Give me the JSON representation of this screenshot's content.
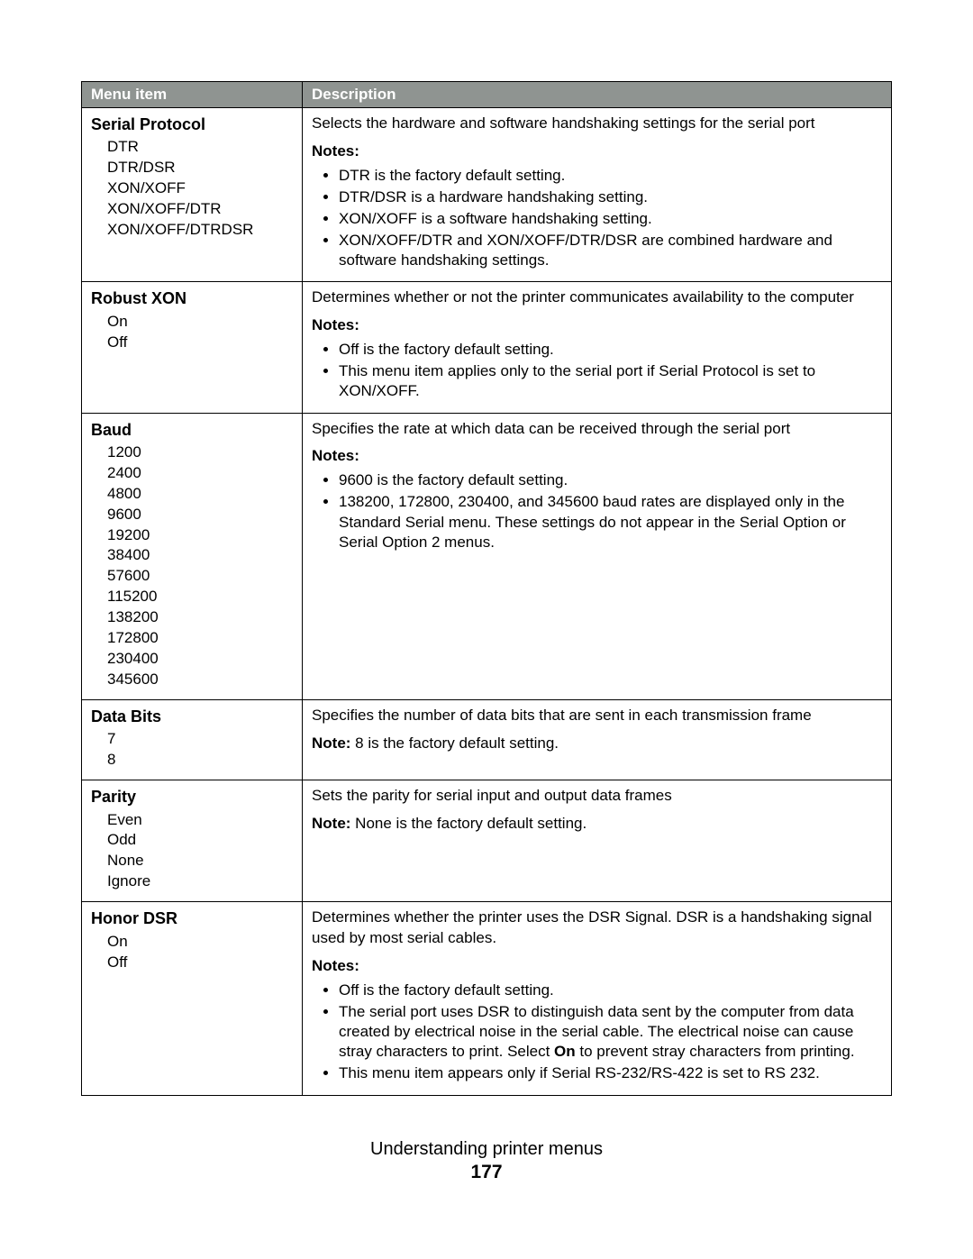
{
  "header": {
    "col1": "Menu item",
    "col2": "Description"
  },
  "rows": {
    "serial_protocol": {
      "title": "Serial Protocol",
      "options": [
        "DTR",
        "DTR/DSR",
        "XON/XOFF",
        "XON/XOFF/DTR",
        "XON/XOFF/DTRDSR"
      ],
      "lead": "Selects the hardware and software handshaking settings for the serial port",
      "notes_label": "Notes:",
      "notes": [
        "DTR is the factory default setting.",
        "DTR/DSR is a hardware handshaking setting.",
        "XON/XOFF is a software handshaking setting.",
        "XON/XOFF/DTR and XON/XOFF/DTR/DSR are combined hardware and software handshaking settings."
      ]
    },
    "robust_xon": {
      "title": "Robust XON",
      "options": [
        "On",
        "Off"
      ],
      "lead": "Determines whether or not the printer communicates availability to the computer",
      "notes_label": "Notes:",
      "notes": [
        "Off is the factory default setting.",
        "This menu item applies only to the serial port if Serial Protocol is set to XON/XOFF."
      ]
    },
    "baud": {
      "title": "Baud",
      "options": [
        "1200",
        "2400",
        "4800",
        "9600",
        "19200",
        "38400",
        "57600",
        "115200",
        "138200",
        "172800",
        "230400",
        "345600"
      ],
      "lead": "Specifies the rate at which data can be received through the serial port",
      "notes_label": "Notes:",
      "notes": [
        "9600 is the factory default setting.",
        "138200, 172800, 230400, and 345600 baud rates are displayed only in the Standard Serial menu. These settings do not appear in the Serial Option or Serial Option 2 menus."
      ]
    },
    "data_bits": {
      "title": "Data Bits",
      "options": [
        "7",
        "8"
      ],
      "lead": "Specifies the number of data bits that are sent in each transmission frame",
      "note_prefix": "Note: ",
      "note_text": "8 is the factory default setting."
    },
    "parity": {
      "title": "Parity",
      "options": [
        "Even",
        "Odd",
        "None",
        "Ignore"
      ],
      "lead": "Sets the parity for serial input and output data frames",
      "note_prefix": "Note: ",
      "note_text": "None is the factory default setting."
    },
    "honor_dsr": {
      "title": "Honor DSR",
      "options": [
        "On",
        "Off"
      ],
      "lead": "Determines whether the printer uses the DSR Signal. DSR is a handshaking signal used by most serial cables.",
      "notes_label": "Notes:",
      "note1": "Off is the factory default setting.",
      "note2_a": "The serial port uses DSR to distinguish data sent by the computer from data created by electrical noise in the serial cable. The electrical noise can cause stray characters to print. Select ",
      "note2_bold": "On",
      "note2_b": " to prevent stray characters from printing.",
      "note3": "This menu item appears only if Serial RS-232/RS-422 is set to RS 232."
    }
  },
  "footer": {
    "title": "Understanding printer menus",
    "page": "177"
  }
}
